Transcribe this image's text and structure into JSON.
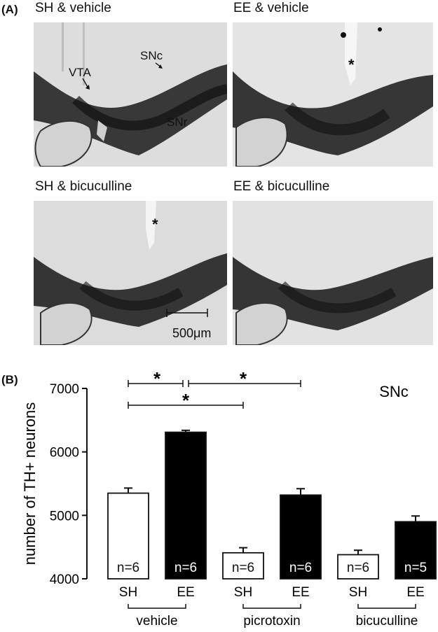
{
  "panel_a": {
    "letter": "(A)",
    "images": [
      {
        "title": "SH & vehicle"
      },
      {
        "title": "EE & vehicle"
      },
      {
        "title": "SH & bicuculline"
      },
      {
        "title": "EE & bicuculline"
      }
    ],
    "annotations": {
      "vta": "VTA",
      "snc": "SNc",
      "snr": "SNr",
      "lesion_mark_1": "*",
      "lesion_mark_2": "*",
      "scale_bar": "500μm"
    }
  },
  "panel_b": {
    "letter": "(B)",
    "region_label": "SNc",
    "significance_marks": [
      "*",
      "*",
      "*"
    ]
  },
  "colors": {
    "sh_bar": "#ffffff",
    "ee_bar": "#000000",
    "tissue_light": "#dcdcdc",
    "tissue_dark": "#1a1a1a"
  },
  "chart_data": {
    "type": "bar",
    "ylabel": "number of TH+ neurons",
    "ylim": [
      4000,
      7000
    ],
    "yticks": [
      4000,
      5000,
      6000,
      7000
    ],
    "groups": [
      "vehicle",
      "picrotoxin",
      "bicuculline"
    ],
    "bars": [
      {
        "group": "vehicle",
        "label": "SH",
        "value": 5350,
        "error": 80,
        "n": "n=6",
        "fill": "white"
      },
      {
        "group": "vehicle",
        "label": "EE",
        "value": 6310,
        "error": 30,
        "n": "n=6",
        "fill": "black"
      },
      {
        "group": "picrotoxin",
        "label": "SH",
        "value": 4410,
        "error": 80,
        "n": "n=6",
        "fill": "white"
      },
      {
        "group": "picrotoxin",
        "label": "EE",
        "value": 5320,
        "error": 100,
        "n": "n=6",
        "fill": "black"
      },
      {
        "group": "bicuculline",
        "label": "SH",
        "value": 4380,
        "error": 70,
        "n": "n=6",
        "fill": "white"
      },
      {
        "group": "bicuculline",
        "label": "EE",
        "value": 4900,
        "error": 90,
        "n": "n=5",
        "fill": "black"
      }
    ]
  }
}
